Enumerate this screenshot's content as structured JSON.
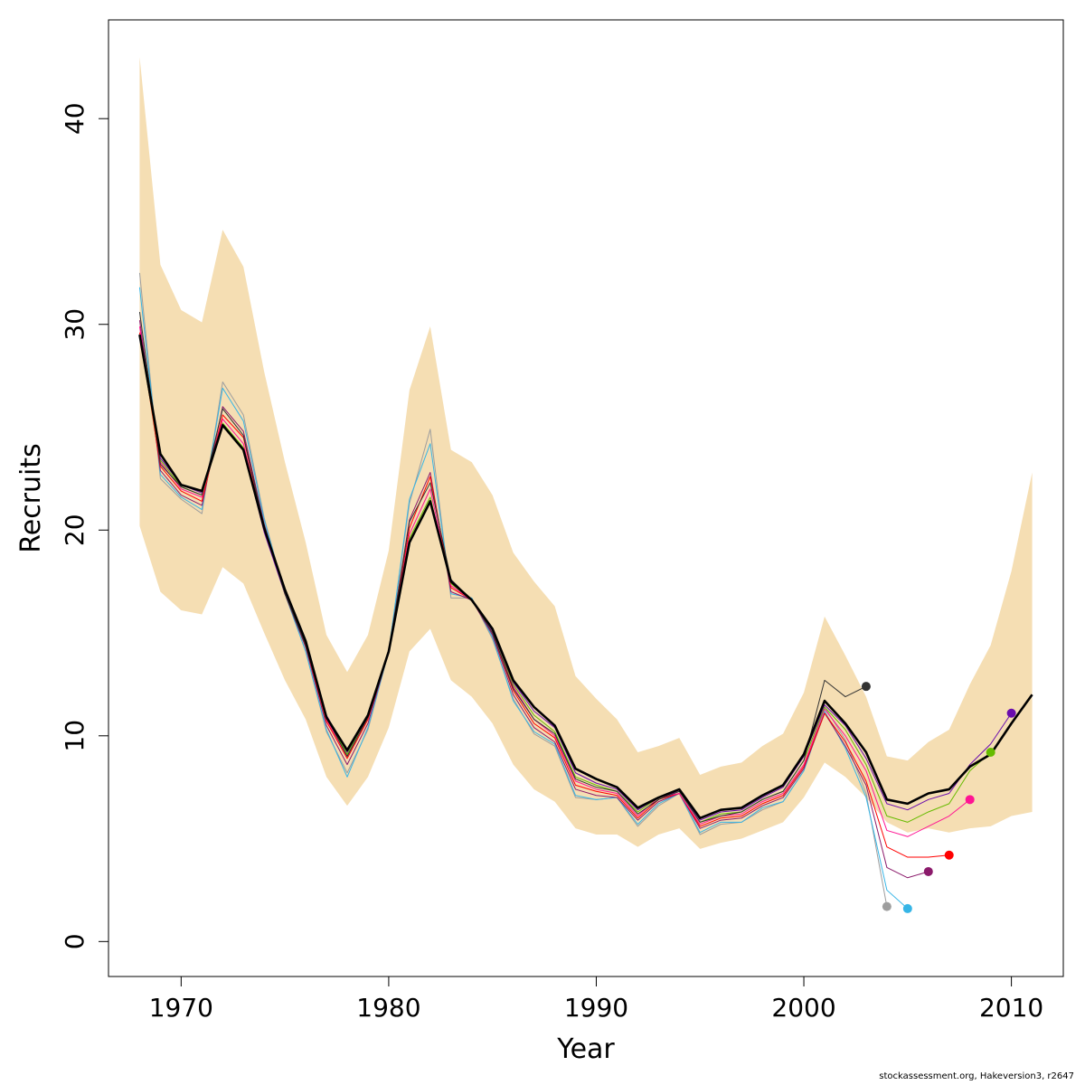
{
  "chart_data": {
    "type": "line",
    "xlabel": "Year",
    "ylabel": "Recruits",
    "xlim": [
      1966.5,
      2012.5
    ],
    "ylim": [
      -1.7,
      44.8
    ],
    "x_ticks": [
      1970,
      1980,
      1990,
      2000,
      2010
    ],
    "y_ticks": [
      0,
      10,
      20,
      30,
      40
    ],
    "grid": false,
    "legend": "none",
    "interval_band": {
      "color": "#F5DEB3",
      "x": [
        1968,
        1969,
        1970,
        1971,
        1972,
        1973,
        1974,
        1975,
        1976,
        1977,
        1978,
        1979,
        1980,
        1981,
        1982,
        1983,
        1984,
        1985,
        1986,
        1987,
        1988,
        1989,
        1990,
        1991,
        1992,
        1993,
        1994,
        1995,
        1996,
        1997,
        1998,
        1999,
        2000,
        2001,
        2002,
        2003,
        2004,
        2005,
        2006,
        2007,
        2008,
        2009,
        2010,
        2011
      ],
      "upper": [
        43.0,
        32.9,
        30.7,
        30.1,
        34.6,
        32.8,
        27.7,
        23.3,
        19.4,
        14.9,
        13.1,
        14.9,
        19.0,
        26.8,
        29.9,
        23.9,
        23.3,
        21.7,
        18.9,
        17.5,
        16.3,
        12.9,
        11.8,
        10.8,
        9.2,
        9.5,
        9.9,
        8.1,
        8.5,
        8.7,
        9.5,
        10.1,
        12.1,
        15.8,
        13.9,
        11.9,
        9.0,
        8.8,
        9.7,
        10.3,
        12.5,
        14.4,
        18.0,
        22.8
      ],
      "lower": [
        20.2,
        17.0,
        16.1,
        15.9,
        18.2,
        17.4,
        15.0,
        12.7,
        10.8,
        8.0,
        6.6,
        8.0,
        10.4,
        14.1,
        15.2,
        12.7,
        11.9,
        10.6,
        8.6,
        7.4,
        6.8,
        5.5,
        5.2,
        5.2,
        4.6,
        5.2,
        5.5,
        4.5,
        4.8,
        5.0,
        5.4,
        5.8,
        7.0,
        8.7,
        8.0,
        7.0,
        5.8,
        5.3,
        5.5,
        5.3,
        5.5,
        5.6,
        6.1,
        6.3
      ]
    },
    "series": [
      {
        "color": "#9E9E9E",
        "width": 1,
        "end_marker": true,
        "x": [
          1968,
          1969,
          1970,
          1971,
          1972,
          1973,
          1974,
          1975,
          1976,
          1977,
          1978,
          1979,
          1980,
          1981,
          1982,
          1983,
          1984,
          1985,
          1986,
          1987,
          1988,
          1989,
          1990,
          1991,
          1992,
          1993,
          1994,
          1995,
          1996,
          1997,
          1998,
          1999,
          2000,
          2001,
          2002,
          2003,
          2004
        ],
        "y": [
          32.5,
          22.5,
          21.5,
          20.8,
          27.2,
          25.6,
          20.6,
          16.9,
          14.1,
          10.2,
          8.2,
          10.3,
          14.1,
          21.3,
          24.9,
          16.7,
          16.7,
          14.7,
          11.8,
          10.1,
          9.5,
          7.0,
          6.9,
          7.0,
          5.6,
          6.6,
          7.2,
          5.2,
          5.7,
          5.8,
          6.4,
          6.8,
          8.3,
          11.4,
          9.8,
          7.2,
          1.7
        ]
      },
      {
        "color": "#36B5E6",
        "width": 1,
        "end_marker": true,
        "x": [
          1968,
          1969,
          1970,
          1971,
          1972,
          1973,
          1974,
          1975,
          1976,
          1977,
          1978,
          1979,
          1980,
          1981,
          1982,
          1983,
          1984,
          1985,
          1986,
          1987,
          1988,
          1989,
          1990,
          1991,
          1992,
          1993,
          1994,
          1995,
          1996,
          1997,
          1998,
          1999,
          2000,
          2001,
          2002,
          2003,
          2004,
          2005
        ],
        "y": [
          31.8,
          22.7,
          21.6,
          21.0,
          26.9,
          25.3,
          20.5,
          16.9,
          14.1,
          10.3,
          8.0,
          10.4,
          14.1,
          21.5,
          24.2,
          16.9,
          16.7,
          14.8,
          11.7,
          10.2,
          9.6,
          7.1,
          6.9,
          7.0,
          5.7,
          6.7,
          7.2,
          5.3,
          5.8,
          5.8,
          6.5,
          6.8,
          8.3,
          11.2,
          9.4,
          7.0,
          2.5,
          1.6
        ]
      },
      {
        "color": "#8B1A6B",
        "width": 1,
        "end_marker": true,
        "x": [
          1968,
          1969,
          1970,
          1971,
          1972,
          1973,
          1974,
          1975,
          1976,
          1977,
          1978,
          1979,
          1980,
          1981,
          1982,
          1983,
          1984,
          1985,
          1986,
          1987,
          1988,
          1989,
          1990,
          1991,
          1992,
          1993,
          1994,
          1995,
          1996,
          1997,
          1998,
          1999,
          2000,
          2001,
          2002,
          2003,
          2004,
          2005,
          2006
        ],
        "y": [
          30.2,
          22.9,
          21.7,
          21.2,
          26.0,
          24.8,
          20.3,
          16.9,
          14.3,
          10.5,
          8.6,
          10.6,
          14.1,
          20.5,
          22.8,
          17.0,
          16.6,
          14.9,
          12.0,
          10.4,
          9.7,
          7.4,
          7.1,
          7.0,
          5.9,
          6.8,
          7.2,
          5.5,
          5.9,
          6.0,
          6.6,
          7.0,
          8.4,
          11.1,
          9.5,
          7.6,
          3.6,
          3.1,
          3.4
        ]
      },
      {
        "color": "#FF0000",
        "width": 1,
        "end_marker": true,
        "x": [
          1968,
          1969,
          1970,
          1971,
          1972,
          1973,
          1974,
          1975,
          1976,
          1977,
          1978,
          1979,
          1980,
          1981,
          1982,
          1983,
          1984,
          1985,
          1986,
          1987,
          1988,
          1989,
          1990,
          1991,
          1992,
          1993,
          1994,
          1995,
          1996,
          1997,
          1998,
          1999,
          2000,
          2001,
          2002,
          2003,
          2004,
          2005,
          2006,
          2007
        ],
        "y": [
          29.6,
          23.1,
          21.9,
          21.4,
          25.6,
          24.5,
          20.1,
          16.9,
          14.4,
          10.7,
          8.9,
          10.8,
          14.1,
          20.1,
          22.6,
          17.2,
          16.6,
          15.0,
          12.2,
          10.6,
          9.9,
          7.6,
          7.3,
          7.1,
          6.0,
          6.9,
          7.2,
          5.6,
          6.0,
          6.1,
          6.7,
          7.1,
          8.5,
          11.1,
          9.7,
          7.8,
          4.6,
          4.1,
          4.1,
          4.2
        ]
      },
      {
        "color": "#FF1493",
        "width": 1,
        "end_marker": true,
        "x": [
          1968,
          1969,
          1970,
          1971,
          1972,
          1973,
          1974,
          1975,
          1976,
          1977,
          1978,
          1979,
          1980,
          1981,
          1982,
          1983,
          1984,
          1985,
          1986,
          1987,
          1988,
          1989,
          1990,
          1991,
          1992,
          1993,
          1994,
          1995,
          1996,
          1997,
          1998,
          1999,
          2000,
          2001,
          2002,
          2003,
          2004,
          2005,
          2006,
          2007,
          2008
        ],
        "y": [
          29.9,
          23.3,
          22.0,
          21.6,
          25.4,
          24.2,
          20.0,
          16.9,
          14.5,
          10.8,
          9.0,
          10.9,
          14.1,
          19.8,
          22.0,
          17.3,
          16.6,
          15.0,
          12.4,
          10.8,
          10.0,
          7.8,
          7.4,
          7.2,
          6.1,
          7.0,
          7.2,
          5.7,
          6.1,
          6.2,
          6.8,
          7.2,
          8.6,
          11.3,
          10.0,
          8.3,
          5.4,
          5.1,
          5.6,
          6.1,
          6.9
        ]
      },
      {
        "color": "#66BB00",
        "width": 1,
        "end_marker": true,
        "x": [
          1968,
          1969,
          1970,
          1971,
          1972,
          1973,
          1974,
          1975,
          1976,
          1977,
          1978,
          1979,
          1980,
          1981,
          1982,
          1983,
          1984,
          1985,
          1986,
          1987,
          1988,
          1989,
          1990,
          1991,
          1992,
          1993,
          1994,
          1995,
          1996,
          1997,
          1998,
          1999,
          2000,
          2001,
          2002,
          2003,
          2004,
          2005,
          2006,
          2007,
          2008,
          2009
        ],
        "y": [
          29.4,
          23.4,
          22.1,
          21.7,
          25.2,
          24.0,
          20.0,
          16.9,
          14.6,
          10.9,
          9.1,
          11.0,
          14.1,
          19.6,
          21.6,
          17.4,
          16.6,
          15.1,
          12.5,
          11.0,
          10.2,
          8.0,
          7.6,
          7.3,
          6.3,
          7.0,
          7.3,
          5.8,
          6.2,
          6.3,
          6.9,
          7.3,
          8.8,
          11.4,
          10.3,
          8.6,
          6.1,
          5.8,
          6.3,
          6.7,
          8.3,
          9.2
        ]
      },
      {
        "color": "#6A0DAD",
        "width": 1,
        "end_marker": true,
        "x": [
          1968,
          1969,
          1970,
          1971,
          1972,
          1973,
          1974,
          1975,
          1976,
          1977,
          1978,
          1979,
          1980,
          1981,
          1982,
          1983,
          1984,
          1985,
          1986,
          1987,
          1988,
          1989,
          1990,
          1991,
          1992,
          1993,
          1994,
          1995,
          1996,
          1997,
          1998,
          1999,
          2000,
          2001,
          2002,
          2003,
          2004,
          2005,
          2006,
          2007,
          2008,
          2009,
          2010
        ],
        "y": [
          29.5,
          23.5,
          22.2,
          21.8,
          25.1,
          23.9,
          19.9,
          16.9,
          14.6,
          11.0,
          9.2,
          11.0,
          14.1,
          19.4,
          21.4,
          17.5,
          16.6,
          15.1,
          12.6,
          11.2,
          10.4,
          8.2,
          7.7,
          7.4,
          6.4,
          7.0,
          7.3,
          5.9,
          6.3,
          6.4,
          7.0,
          7.5,
          9.0,
          11.5,
          10.5,
          8.9,
          6.7,
          6.4,
          6.9,
          7.2,
          8.6,
          9.6,
          11.1
        ]
      },
      {
        "color": "#333333",
        "width": 1,
        "end_marker": true,
        "x": [
          1968,
          1969,
          1970,
          1971,
          1972,
          1973,
          1974,
          1975,
          1976,
          1977,
          1978,
          1979,
          1980,
          1981,
          1982,
          1983,
          1984,
          1985,
          1986,
          1987,
          1988,
          1989,
          1990,
          1991,
          1992,
          1993,
          1994,
          1995,
          1996,
          1997,
          1998,
          1999,
          2000,
          2001,
          2002,
          2003
        ],
        "y": [
          30.6,
          23.2,
          22.1,
          21.7,
          25.9,
          24.6,
          20.2,
          16.9,
          14.4,
          10.9,
          9.0,
          10.9,
          14.1,
          20.4,
          22.3,
          17.6,
          16.6,
          15.0,
          12.3,
          10.8,
          10.1,
          7.9,
          7.5,
          7.3,
          6.2,
          6.9,
          7.3,
          5.8,
          6.1,
          6.3,
          6.9,
          7.3,
          8.8,
          12.7,
          11.9,
          12.4
        ]
      },
      {
        "color": "#000000",
        "width": 2.6,
        "end_marker": false,
        "x": [
          1968,
          1969,
          1970,
          1971,
          1972,
          1973,
          1974,
          1975,
          1976,
          1977,
          1978,
          1979,
          1980,
          1981,
          1982,
          1983,
          1984,
          1985,
          1986,
          1987,
          1988,
          1989,
          1990,
          1991,
          1992,
          1993,
          1994,
          1995,
          1996,
          1997,
          1998,
          1999,
          2000,
          2001,
          2002,
          2003,
          2004,
          2005,
          2006,
          2007,
          2008,
          2009,
          2010,
          2011
        ],
        "y": [
          29.5,
          23.7,
          22.2,
          21.9,
          25.1,
          23.9,
          20.1,
          17.1,
          14.6,
          10.9,
          9.3,
          11.0,
          14.1,
          19.4,
          21.4,
          17.5,
          16.6,
          15.2,
          12.7,
          11.4,
          10.5,
          8.4,
          7.9,
          7.5,
          6.5,
          7.0,
          7.4,
          6.0,
          6.4,
          6.5,
          7.1,
          7.6,
          9.1,
          11.7,
          10.6,
          9.2,
          6.9,
          6.7,
          7.2,
          7.4,
          8.5,
          9.1,
          10.6,
          12.0
        ]
      }
    ]
  },
  "credit": "stockassessment.org, Hakeversion3, r2647"
}
